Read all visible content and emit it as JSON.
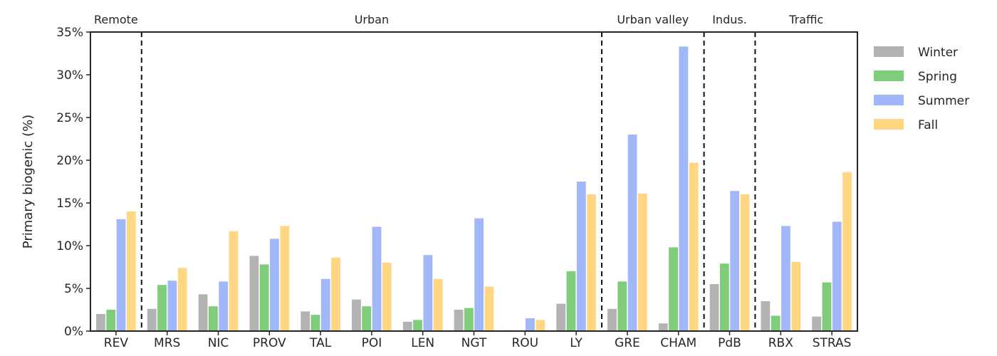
{
  "chart_data": {
    "type": "bar",
    "ylabel": "Primary biogenic (%)",
    "ylim": [
      0,
      35
    ],
    "yticks": [
      "0%",
      "5%",
      "10%",
      "15%",
      "20%",
      "25%",
      "30%",
      "35%"
    ],
    "ytick_values": [
      0,
      5,
      10,
      15,
      20,
      25,
      30,
      35
    ],
    "categories": [
      "REV",
      "MRS",
      "NIC",
      "PROV",
      "TAL",
      "POI",
      "LEN",
      "NGT",
      "ROU",
      "LY",
      "GRE",
      "CHAM",
      "PdB",
      "RBX",
      "STRAS"
    ],
    "series": [
      {
        "name": "Winter",
        "color": "#b3b3b3",
        "values": [
          2.0,
          2.6,
          4.3,
          8.8,
          2.3,
          3.7,
          1.1,
          2.5,
          0.1,
          3.2,
          2.6,
          0.9,
          5.5,
          3.5,
          1.7
        ]
      },
      {
        "name": "Spring",
        "color": "#7fcc7a",
        "values": [
          2.5,
          5.4,
          2.9,
          7.8,
          1.9,
          2.9,
          1.3,
          2.7,
          0.0,
          7.0,
          5.8,
          9.8,
          7.9,
          1.8,
          5.7
        ]
      },
      {
        "name": "Summer",
        "color": "#a1b7f7",
        "values": [
          13.1,
          5.9,
          5.8,
          10.8,
          6.1,
          12.2,
          8.9,
          13.2,
          1.5,
          17.5,
          23.0,
          33.3,
          16.4,
          12.3,
          12.8
        ]
      },
      {
        "name": "Fall",
        "color": "#ffd782",
        "values": [
          14.0,
          7.4,
          11.7,
          12.3,
          8.6,
          8.0,
          6.1,
          5.2,
          1.3,
          16.0,
          16.1,
          19.7,
          16.0,
          8.1,
          18.6
        ]
      }
    ],
    "groups": [
      {
        "label": "Remote",
        "start": 0,
        "end": 0
      },
      {
        "label": "Urban",
        "start": 1,
        "end": 9
      },
      {
        "label": "Urban valley",
        "start": 10,
        "end": 11
      },
      {
        "label": "Indus.",
        "start": 12,
        "end": 12
      },
      {
        "label": "Traffic",
        "start": 13,
        "end": 14
      }
    ],
    "legend_position": "right",
    "grid": false
  }
}
